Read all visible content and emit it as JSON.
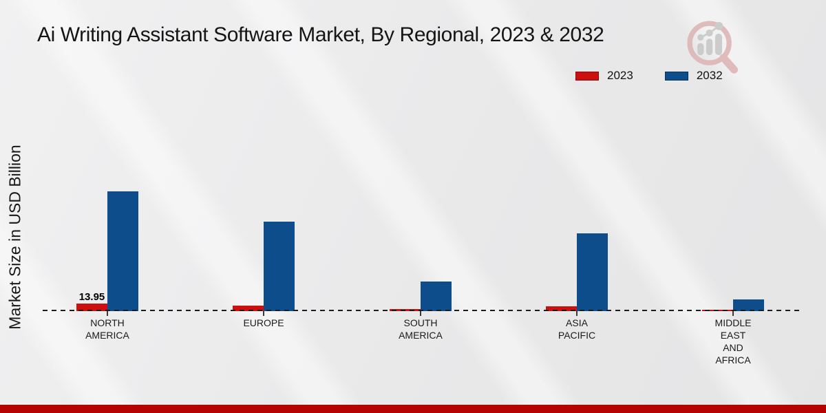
{
  "chart_data": {
    "type": "bar",
    "title": "Ai Writing Assistant Software Market, By Regional, 2023 & 2032",
    "ylabel": "Market Size in USD Billion",
    "xlabel": "",
    "units": "USD Billion",
    "categories": [
      "NORTH AMERICA",
      "EUROPE",
      "SOUTH AMERICA",
      "ASIA PACIFIC",
      "MIDDLE EAST AND AFRICA"
    ],
    "category_label_lines": [
      [
        "NORTH",
        "AMERICA"
      ],
      [
        "EUROPE"
      ],
      [
        "SOUTH",
        "AMERICA"
      ],
      [
        "ASIA",
        "PACIFIC"
      ],
      [
        "MIDDLE",
        "EAST",
        "AND",
        "AFRICA"
      ]
    ],
    "series": [
      {
        "name": "2023",
        "color": "#cc0f0f",
        "values": [
          13.95,
          10.6,
          3.8,
          8.9,
          2.8
        ]
      },
      {
        "name": "2032",
        "color": "#0e4d8c",
        "values": [
          220,
          165,
          55,
          143,
          21
        ]
      }
    ],
    "data_labels": [
      {
        "series": "2023",
        "category": "NORTH AMERICA",
        "text": "13.95"
      }
    ],
    "ylim": [
      0,
      240
    ],
    "grid": false,
    "legend_position": "top-right",
    "baseline_style": "dashed"
  },
  "legend": {
    "items": [
      {
        "label": "2023",
        "color": "#cc0f0f"
      },
      {
        "label": "2032",
        "color": "#0e4d8c"
      }
    ]
  },
  "footer": {
    "accent_color": "#b50303"
  },
  "icons": {
    "watermark": "magnifier-analytics-logo-icon"
  },
  "colors": {
    "background": "#ebebec",
    "axis": "#1c1c1c",
    "text": "#151515"
  }
}
